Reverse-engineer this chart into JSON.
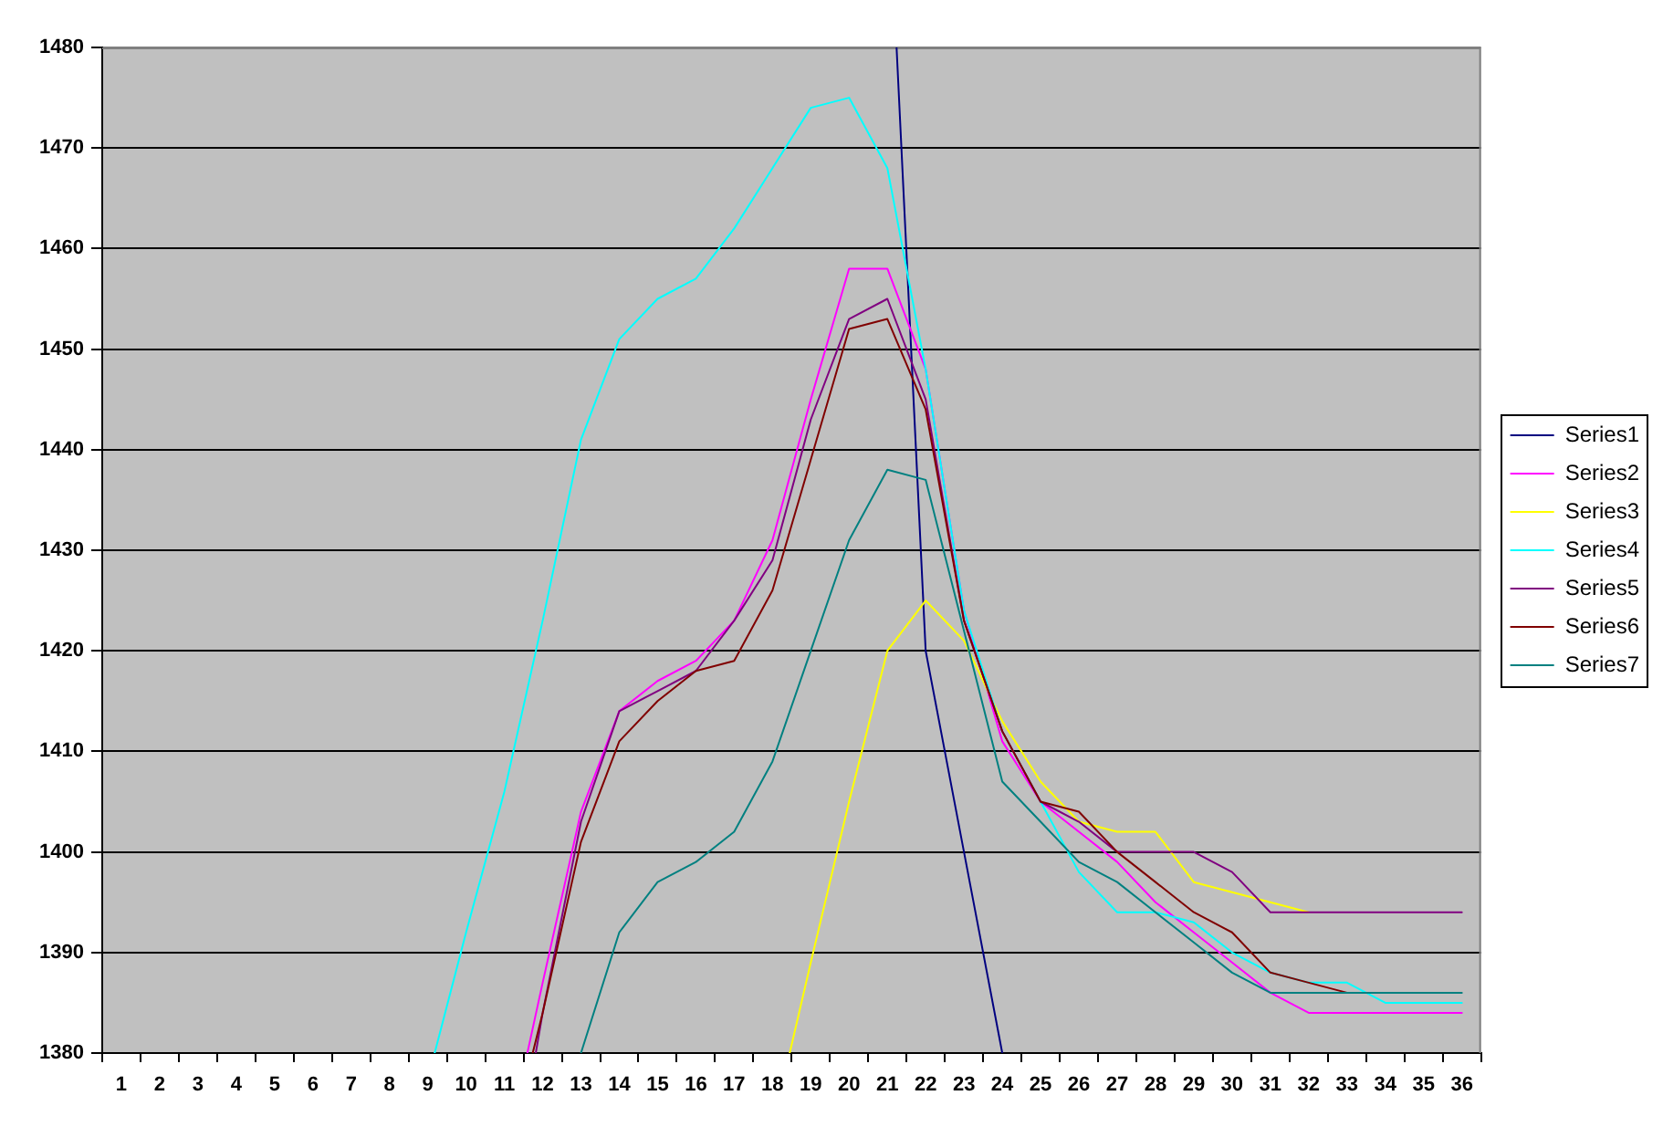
{
  "chart_data": {
    "type": "line",
    "xlim": [
      0.5,
      36.5
    ],
    "xticks": [
      {
        "value": 0.5,
        "label": null
      },
      1,
      {
        "value": 1.5,
        "label": null
      },
      2,
      {
        "value": 2.5,
        "label": null
      },
      3,
      {
        "value": 3.5,
        "label": null
      },
      4,
      {
        "value": 4.5,
        "label": null
      },
      5,
      {
        "value": 5.5,
        "label": null
      },
      6,
      {
        "value": 6.5,
        "label": null
      },
      7,
      {
        "value": 7.5,
        "label": null
      },
      8,
      {
        "value": 8.5,
        "label": null
      },
      9,
      {
        "value": 9.5,
        "label": null
      },
      10,
      {
        "value": 10.5,
        "label": null
      },
      11,
      {
        "value": 11.5,
        "label": null
      },
      12,
      {
        "value": 12.5,
        "label": null
      },
      13,
      {
        "value": 13.5,
        "label": null
      },
      14,
      {
        "value": 14.5,
        "label": null
      },
      15,
      {
        "value": 15.5,
        "label": null
      },
      16,
      {
        "value": 16.5,
        "label": null
      },
      17,
      {
        "value": 17.5,
        "label": null
      },
      18,
      {
        "value": 18.5,
        "label": null
      },
      19,
      {
        "value": 19.5,
        "label": null
      },
      20,
      {
        "value": 20.5,
        "label": null
      },
      21,
      {
        "value": 21.5,
        "label": null
      },
      22,
      {
        "value": 22.5,
        "label": null
      },
      23,
      {
        "value": 23.5,
        "label": null
      },
      24,
      {
        "value": 24.5,
        "label": null
      },
      25,
      {
        "value": 25.5,
        "label": null
      },
      26,
      {
        "value": 26.5,
        "label": null
      },
      27,
      {
        "value": 27.5,
        "label": null
      },
      28,
      {
        "value": 28.5,
        "label": null
      },
      29,
      {
        "value": 29.5,
        "label": null
      },
      30,
      {
        "value": 30.5,
        "label": null
      },
      31,
      {
        "value": 31.5,
        "label": null
      },
      32,
      {
        "value": 32.5,
        "label": null
      },
      33,
      {
        "value": 33.5,
        "label": null
      },
      34,
      {
        "value": 34.5,
        "label": null
      },
      35,
      {
        "value": 35.5,
        "label": null
      },
      36,
      {
        "value": 36.5,
        "label": null
      }
    ],
    "ylim": [
      1380,
      1480
    ],
    "yticks": [
      1380,
      1390,
      1400,
      1410,
      1420,
      1430,
      1440,
      1450,
      1460,
      1470,
      1480
    ],
    "grid": "y",
    "legend": "right",
    "marker": "none",
    "line_style": "solid",
    "series": [
      {
        "name": "Series1",
        "color": "#000080",
        "x": [
          21.24,
          22,
          23,
          24
        ],
        "values": [
          1480,
          1420,
          1400,
          1380
        ]
      },
      {
        "name": "Series2",
        "color": "#ff00ff",
        "x": [
          11.6,
          12,
          13,
          14,
          15,
          16,
          17,
          18,
          19,
          20,
          21,
          22,
          23,
          24,
          25,
          26,
          27,
          28,
          29,
          30,
          31,
          32,
          33,
          34,
          35,
          36
        ],
        "values": [
          1380,
          1387,
          1404,
          1414,
          1417,
          1419,
          1423,
          1431,
          1445,
          1458,
          1458,
          1448,
          1424,
          1411,
          1405,
          1402,
          1399,
          1395,
          1392,
          1389,
          1386,
          1384,
          1384,
          1384,
          1384,
          1384
        ]
      },
      {
        "name": "Series3",
        "color": "#ffff00",
        "x": [
          18.45,
          19,
          20,
          21,
          22,
          23,
          24,
          25,
          26,
          27,
          28,
          29,
          30,
          31,
          32
        ],
        "values": [
          1380,
          1389,
          1405,
          1420,
          1425,
          1421,
          1413,
          1407,
          1403,
          1402,
          1402,
          1397,
          1396,
          1395,
          1394
        ]
      },
      {
        "name": "Series4",
        "color": "#00ffff",
        "x": [
          9.18,
          10,
          11,
          12,
          13,
          14,
          15,
          16,
          17,
          18,
          19,
          20,
          21,
          22,
          23,
          24,
          25,
          26,
          27,
          28,
          29,
          30,
          31,
          32,
          33,
          34,
          35,
          36
        ],
        "values": [
          1380,
          1392,
          1406,
          1423,
          1441,
          1451,
          1455,
          1457,
          1462,
          1468,
          1474,
          1475,
          1468,
          1448,
          1424,
          1412,
          1405,
          1398,
          1394,
          1394,
          1393,
          1390,
          1388,
          1387,
          1387,
          1385,
          1385,
          1385
        ]
      },
      {
        "name": "Series5",
        "color": "#800080",
        "x": [
          11.82,
          12,
          13,
          14,
          15,
          16,
          17,
          18,
          19,
          20,
          21,
          22,
          23,
          24,
          25,
          26,
          27,
          28,
          29,
          30,
          31,
          32,
          33,
          34,
          35,
          36
        ],
        "values": [
          1380,
          1384,
          1403,
          1414,
          1416,
          1418,
          1423,
          1429,
          1443,
          1453,
          1455,
          1445,
          1423,
          1412,
          1405,
          1403,
          1400,
          1400,
          1400,
          1398,
          1394,
          1394,
          1394,
          1394,
          1394,
          1394
        ]
      },
      {
        "name": "Series6",
        "color": "#800000",
        "x": [
          11.74,
          12,
          13,
          14,
          15,
          16,
          17,
          18,
          19,
          20,
          21,
          22,
          23,
          24,
          25,
          26,
          27,
          28,
          29,
          30,
          31,
          32,
          33
        ],
        "values": [
          1380,
          1384,
          1401,
          1411,
          1415,
          1418,
          1419,
          1426,
          1439,
          1452,
          1453,
          1444,
          1423,
          1412,
          1405,
          1404,
          1400,
          1397,
          1394,
          1392,
          1388,
          1387,
          1386
        ]
      },
      {
        "name": "Series7",
        "color": "#008080",
        "x": [
          13,
          14,
          15,
          16,
          17,
          18,
          19,
          20,
          21,
          22,
          23,
          24,
          25,
          26,
          27,
          28,
          29,
          30,
          31,
          32,
          33,
          34,
          35,
          36
        ],
        "values": [
          1380,
          1392,
          1397,
          1399,
          1402,
          1409,
          1420,
          1431,
          1438,
          1437,
          1422,
          1407,
          1403,
          1399,
          1397,
          1394,
          1391,
          1388,
          1386,
          1386,
          1386,
          1386,
          1386,
          1386
        ]
      }
    ]
  }
}
